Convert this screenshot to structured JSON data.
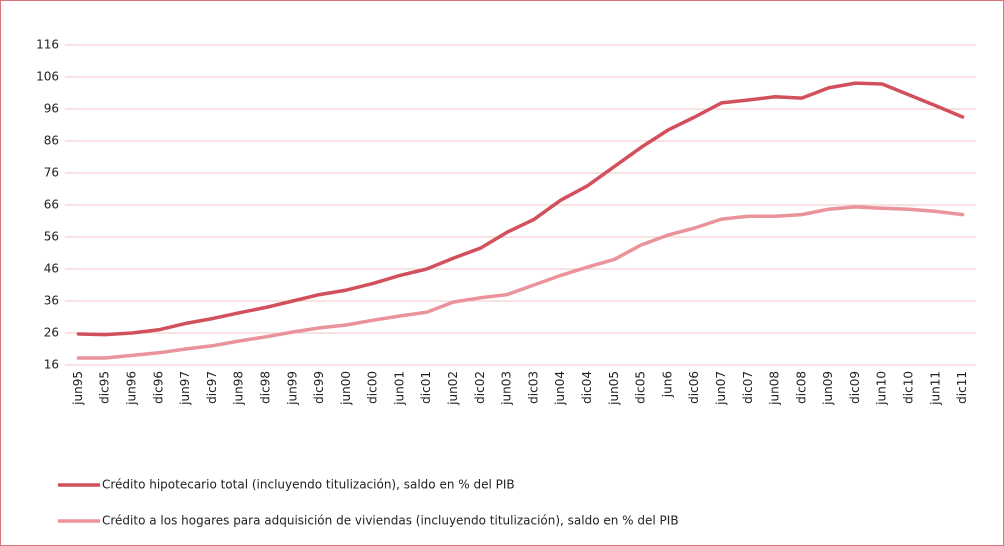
{
  "chart_data": {
    "type": "line",
    "categories": [
      "jun95",
      "dic95",
      "jun96",
      "dic96",
      "jun97",
      "dic97",
      "jun98",
      "dic98",
      "jun99",
      "dic99",
      "jun00",
      "dic00",
      "jun01",
      "dic01",
      "jun02",
      "dic02",
      "jun03",
      "dic03",
      "jun04",
      "dic04",
      "jun05",
      "dic05",
      "jun6",
      "dic06",
      "jun07",
      "dic07",
      "jun08",
      "dic08",
      "jun09",
      "dic09",
      "jun10",
      "dic10",
      "jun11",
      "dic11"
    ],
    "series": [
      {
        "name": "Crédito hipotecario total (incluyendo titulización), saldo en % del PIB",
        "color": "#d2505c",
        "values": [
          25.7,
          25.5,
          26,
          27,
          29,
          30.5,
          32.3,
          34,
          36,
          38,
          39.4,
          41.5,
          44,
          46,
          49.4,
          52.5,
          57.5,
          61.5,
          67.5,
          72,
          78,
          84,
          89.4,
          93.5,
          97.9,
          98.8,
          99.8,
          99.4,
          102.6,
          104.1,
          103.8,
          100.4,
          97,
          93.5
        ]
      },
      {
        "name": "Crédito a los hogares para adquisición de viviendas (incluyendo titulización), saldo en % del PIB",
        "color": "#ea939b",
        "values": [
          18.2,
          18.2,
          19,
          19.8,
          21,
          22,
          23.5,
          24.8,
          26.3,
          27.6,
          28.5,
          30,
          31.3,
          32.5,
          35.7,
          37,
          38,
          41,
          44,
          46.6,
          49,
          53.5,
          56.6,
          58.8,
          61.6,
          62.5,
          62.5,
          63,
          64.7,
          65.4,
          65,
          64.7,
          64,
          63
        ]
      }
    ],
    "ylim": [
      16,
      116
    ],
    "yticks": [
      16,
      26,
      36,
      46,
      56,
      66,
      76,
      86,
      96,
      106,
      116
    ],
    "grid": true,
    "legend": "bottom"
  }
}
